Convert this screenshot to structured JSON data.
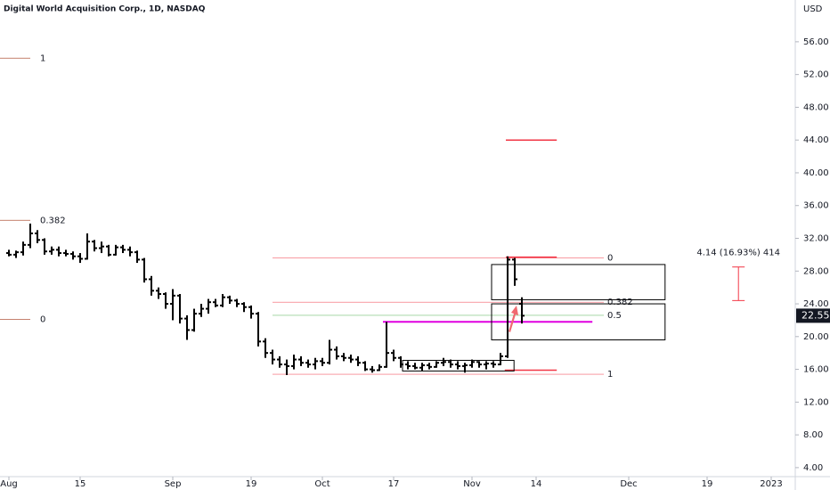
{
  "chart_data": {
    "type": "ohlc",
    "title": "Digital World Acquisition Corp., 1D, NASDAQ",
    "currency": "USD",
    "color": "#000000",
    "open": [
      30.2,
      30.0,
      30.3,
      31.2,
      32.6,
      31.8,
      30.4,
      30.6,
      30.2,
      30.1,
      29.8,
      29.5,
      31.6,
      30.8,
      31.0,
      30.0,
      30.9,
      30.6,
      30.3,
      29.4,
      27.0,
      25.6,
      25.2,
      24.0,
      25.0,
      22.2,
      20.8,
      22.8,
      23.4,
      24.2,
      23.8,
      24.8,
      24.4,
      24.0,
      23.6,
      22.8,
      19.4,
      18.0,
      17.2,
      16.6,
      16.4,
      17.2,
      16.8,
      16.6,
      17.0,
      16.8,
      18.4,
      17.6,
      17.4,
      17.2,
      16.8,
      16.0,
      15.9,
      16.3,
      18.0,
      17.4,
      16.6,
      16.4,
      16.2,
      16.5,
      16.3,
      16.8,
      16.9,
      16.6,
      16.4,
      16.5,
      16.9,
      16.6,
      16.7,
      16.6,
      17.6,
      29.4,
      24.0
    ],
    "high": [
      30.6,
      30.5,
      31.6,
      33.8,
      33.0,
      32.0,
      31.0,
      31.0,
      30.6,
      30.4,
      30.2,
      32.6,
      31.8,
      31.6,
      31.2,
      31.2,
      31.2,
      31.0,
      30.5,
      29.6,
      27.4,
      26.0,
      25.4,
      25.8,
      25.2,
      22.6,
      23.4,
      24.0,
      24.6,
      24.6,
      25.2,
      25.0,
      24.6,
      24.2,
      23.8,
      23.0,
      19.8,
      18.4,
      17.6,
      17.2,
      17.8,
      17.6,
      17.2,
      17.4,
      17.4,
      19.6,
      18.8,
      18.0,
      17.8,
      17.6,
      17.0,
      16.4,
      16.6,
      21.8,
      18.4,
      17.6,
      17.0,
      16.8,
      16.8,
      16.8,
      17.0,
      17.4,
      17.2,
      17.0,
      16.8,
      17.2,
      17.0,
      17.0,
      17.0,
      18.0,
      29.8,
      29.6,
      24.8
    ],
    "low": [
      29.8,
      29.6,
      29.9,
      30.8,
      31.4,
      30.0,
      30.0,
      29.8,
      29.8,
      29.4,
      29.0,
      29.4,
      30.4,
      30.2,
      29.8,
      29.9,
      30.2,
      29.8,
      29.0,
      26.6,
      25.0,
      24.6,
      23.4,
      22.0,
      21.6,
      19.6,
      20.6,
      22.4,
      22.8,
      23.6,
      23.6,
      24.0,
      23.6,
      23.0,
      22.2,
      18.8,
      17.4,
      16.6,
      16.2,
      15.3,
      16.0,
      16.4,
      16.2,
      16.0,
      16.4,
      16.6,
      17.2,
      17.0,
      16.8,
      16.4,
      15.8,
      15.6,
      15.8,
      16.2,
      17.0,
      16.2,
      16.0,
      16.0,
      15.8,
      16.0,
      16.2,
      16.4,
      16.2,
      16.0,
      15.6,
      16.2,
      16.2,
      16.0,
      16.2,
      16.5,
      17.4,
      26.2,
      21.6
    ],
    "close": [
      30.0,
      30.3,
      31.2,
      32.6,
      31.8,
      30.4,
      30.6,
      30.2,
      30.1,
      29.8,
      29.5,
      31.6,
      30.8,
      31.0,
      30.0,
      30.9,
      30.6,
      30.3,
      29.4,
      27.0,
      25.6,
      25.2,
      24.0,
      25.0,
      22.2,
      20.8,
      22.8,
      23.4,
      24.2,
      23.8,
      24.8,
      24.4,
      24.0,
      23.6,
      22.8,
      19.4,
      18.0,
      17.2,
      16.6,
      16.4,
      17.2,
      16.8,
      16.6,
      17.0,
      16.8,
      18.4,
      17.6,
      17.4,
      17.2,
      16.8,
      16.0,
      15.9,
      16.3,
      18.0,
      17.4,
      16.6,
      16.4,
      16.2,
      16.5,
      16.3,
      16.8,
      16.9,
      16.6,
      16.4,
      16.5,
      16.9,
      16.6,
      16.7,
      16.6,
      17.6,
      29.4,
      27.0,
      22.55
    ],
    "last_price": 22.55,
    "xlim": [
      -1.25,
      110.375
    ],
    "xticks": [
      {
        "value": 0,
        "label": "Aug"
      },
      {
        "value": 10,
        "label": "15"
      },
      {
        "value": 23,
        "label": "Sep"
      },
      {
        "value": 34,
        "label": "19"
      },
      {
        "value": 44,
        "label": "Oct"
      },
      {
        "value": 54,
        "label": "17"
      },
      {
        "value": 65,
        "label": "Nov"
      },
      {
        "value": 74,
        "label": "14"
      },
      {
        "value": 87,
        "label": "Dec"
      },
      {
        "value": 98,
        "label": "19"
      },
      {
        "value": 107,
        "label": "2023"
      }
    ],
    "ylim": [
      2.9,
      61.1
    ],
    "yticks": [
      {
        "value": 4,
        "label": "4.00"
      },
      {
        "value": 8,
        "label": "8.00"
      },
      {
        "value": 12,
        "label": "12.00"
      },
      {
        "value": 16,
        "label": "16.00"
      },
      {
        "value": 20,
        "label": "20.00"
      },
      {
        "value": 24,
        "label": "24.00"
      },
      {
        "value": 28,
        "label": "28.00"
      },
      {
        "value": 32,
        "label": "32.00"
      },
      {
        "value": 36,
        "label": "36.00"
      },
      {
        "value": 40,
        "label": "40.00"
      },
      {
        "value": 44,
        "label": "44.00"
      },
      {
        "value": 48,
        "label": "48.00"
      },
      {
        "value": 52,
        "label": "52.00"
      },
      {
        "value": 56,
        "label": "56.00"
      }
    ],
    "fib_left": {
      "x": [
        -1.25,
        3
      ],
      "color": "#b2593f",
      "levels": [
        {
          "label": "1",
          "price": 54.0
        },
        {
          "label": "0.382",
          "price": 34.2
        },
        {
          "label": "0",
          "price": 22.1
        }
      ]
    },
    "fib_right": {
      "x": [
        37,
        83.5
      ],
      "levels": [
        {
          "label": "0",
          "price": 29.6,
          "color": "#f23645"
        },
        {
          "label": "0.382",
          "price": 24.2,
          "color": "#f23645"
        },
        {
          "label": "0.5",
          "price": 22.6,
          "color": "#4caf50"
        },
        {
          "label": "1",
          "price": 15.4,
          "color": "#f23645"
        }
      ]
    },
    "red_lines": {
      "color": "#f23645",
      "items": [
        {
          "x": [
            69.75,
            76.9
          ],
          "price": 44.0
        },
        {
          "x": [
            69.75,
            76.9
          ],
          "price": 29.7
        },
        {
          "x": [
            69.6,
            76.9
          ],
          "price": 15.9
        }
      ]
    },
    "magenta_line": {
      "color": "#e000e0",
      "x": [
        52.5,
        81.9
      ],
      "price": 21.8
    },
    "boxes": [
      {
        "x": [
          67.75,
          92.1
        ],
        "y": [
          24.5,
          28.8
        ]
      },
      {
        "x": [
          67.75,
          92.1
        ],
        "y": [
          19.6,
          24.0
        ]
      },
      {
        "x": [
          55.25,
          70.9
        ],
        "y": [
          15.8,
          17.1
        ]
      }
    ],
    "measure": {
      "x": 102.4,
      "y": [
        24.4,
        28.5
      ],
      "color": "#f23645",
      "label": "4.14 (16.93%) 414"
    }
  }
}
